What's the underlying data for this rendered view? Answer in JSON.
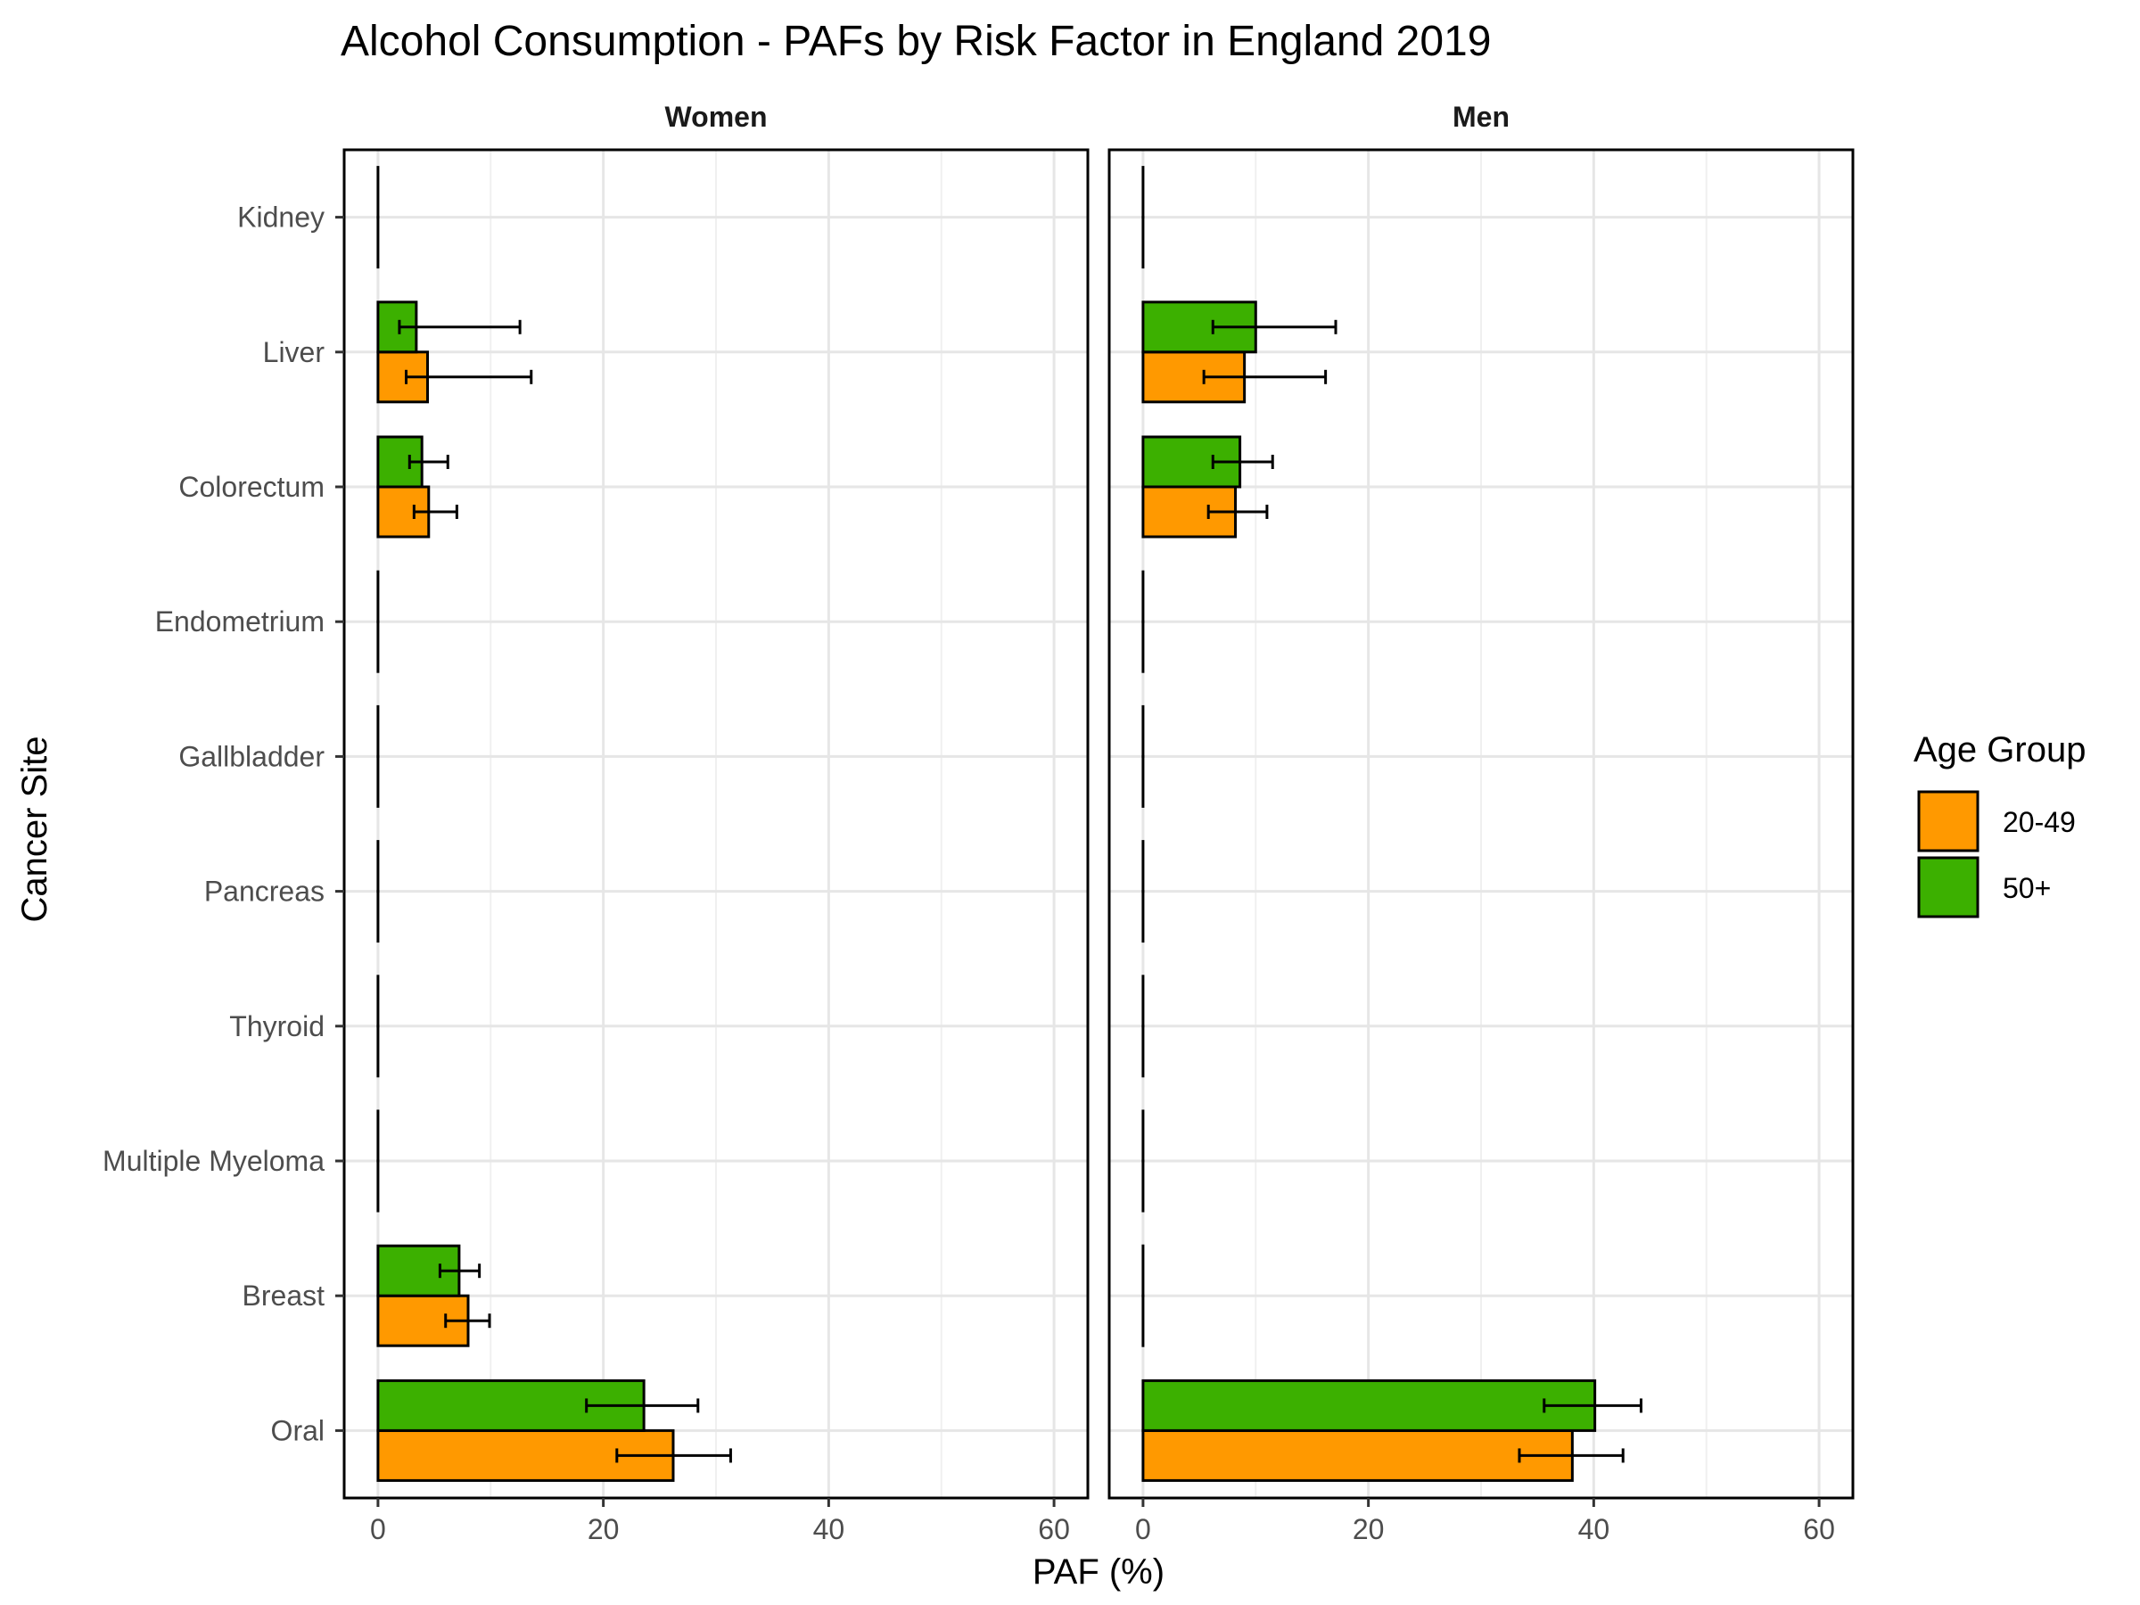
{
  "chart_data": {
    "type": "bar",
    "orientation": "horizontal",
    "title": "Alcohol Consumption  - PAFs by Risk Factor in England 2019",
    "xlabel": "PAF (%)",
    "ylabel": "Cancer Site",
    "xlim": [
      -3,
      63
    ],
    "x_ticks": [
      0,
      20,
      40,
      60
    ],
    "grid": true,
    "legend": {
      "title": "Age Group",
      "position": "right"
    },
    "categories": [
      "Kidney",
      "Liver",
      "Colorectum",
      "Endometrium",
      "Gallbladder",
      "Pancreas",
      "Thyroid",
      "Multiple Myeloma",
      "Breast",
      "Oral"
    ],
    "series_colors": {
      "20-49": "#FF9900",
      "50+": "#3CB000"
    },
    "panels": [
      {
        "name": "Women",
        "series": [
          {
            "name": "20-49",
            "values": [
              0,
              4.4,
              4.5,
              0,
              0,
              0,
              0,
              0,
              8.0,
              26.2
            ],
            "error_low": [
              0,
              2.5,
              3.2,
              0,
              0,
              0,
              0,
              0,
              6.0,
              21.2
            ],
            "error_high": [
              0,
              13.6,
              7.0,
              0,
              0,
              0,
              0,
              0,
              9.9,
              31.3
            ]
          },
          {
            "name": "50+",
            "values": [
              0,
              3.4,
              3.9,
              0,
              0,
              0,
              0,
              0,
              7.2,
              23.6
            ],
            "error_low": [
              0,
              1.9,
              2.8,
              0,
              0,
              0,
              0,
              0,
              5.5,
              18.5
            ],
            "error_high": [
              0,
              12.6,
              6.2,
              0,
              0,
              0,
              0,
              0,
              9.0,
              28.4
            ]
          }
        ]
      },
      {
        "name": "Men",
        "series": [
          {
            "name": "20-49",
            "values": [
              0,
              9.0,
              8.2,
              0,
              0,
              0,
              0,
              0,
              0,
              38.1
            ],
            "error_low": [
              0,
              5.4,
              5.8,
              0,
              0,
              0,
              0,
              0,
              0,
              33.4
            ],
            "error_high": [
              0,
              16.2,
              11.0,
              0,
              0,
              0,
              0,
              0,
              0,
              42.6
            ]
          },
          {
            "name": "50+",
            "values": [
              0,
              10.0,
              8.6,
              0,
              0,
              0,
              0,
              0,
              0,
              40.1
            ],
            "error_low": [
              0,
              6.2,
              6.2,
              0,
              0,
              0,
              0,
              0,
              0,
              35.6
            ],
            "error_high": [
              0,
              17.1,
              11.5,
              0,
              0,
              0,
              0,
              0,
              0,
              44.2
            ]
          }
        ]
      }
    ]
  }
}
